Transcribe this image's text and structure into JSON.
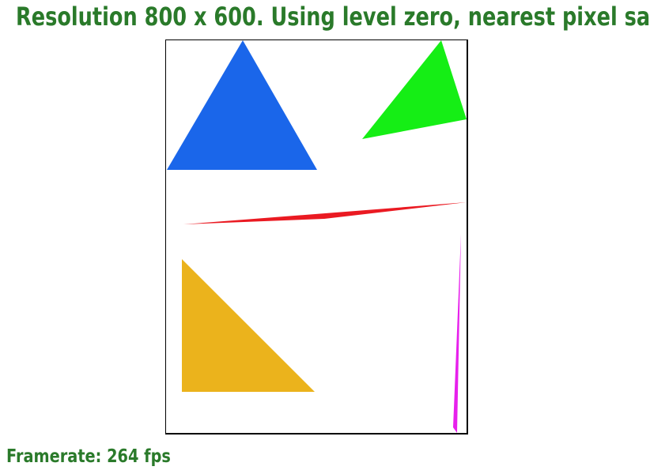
{
  "header": {
    "text": "Resolution 800 x 600. Using level zero, nearest pixel sa"
  },
  "footer": {
    "framerate_text": "Framerate: 264 fps"
  },
  "colors": {
    "text": "#2a7a2a",
    "triangle_blue": "#1a66ea",
    "triangle_green": "#15ee15",
    "triangle_red": "#ea1a22",
    "triangle_yellow": "#ebb31c",
    "triangle_magenta": "#e720ec"
  }
}
